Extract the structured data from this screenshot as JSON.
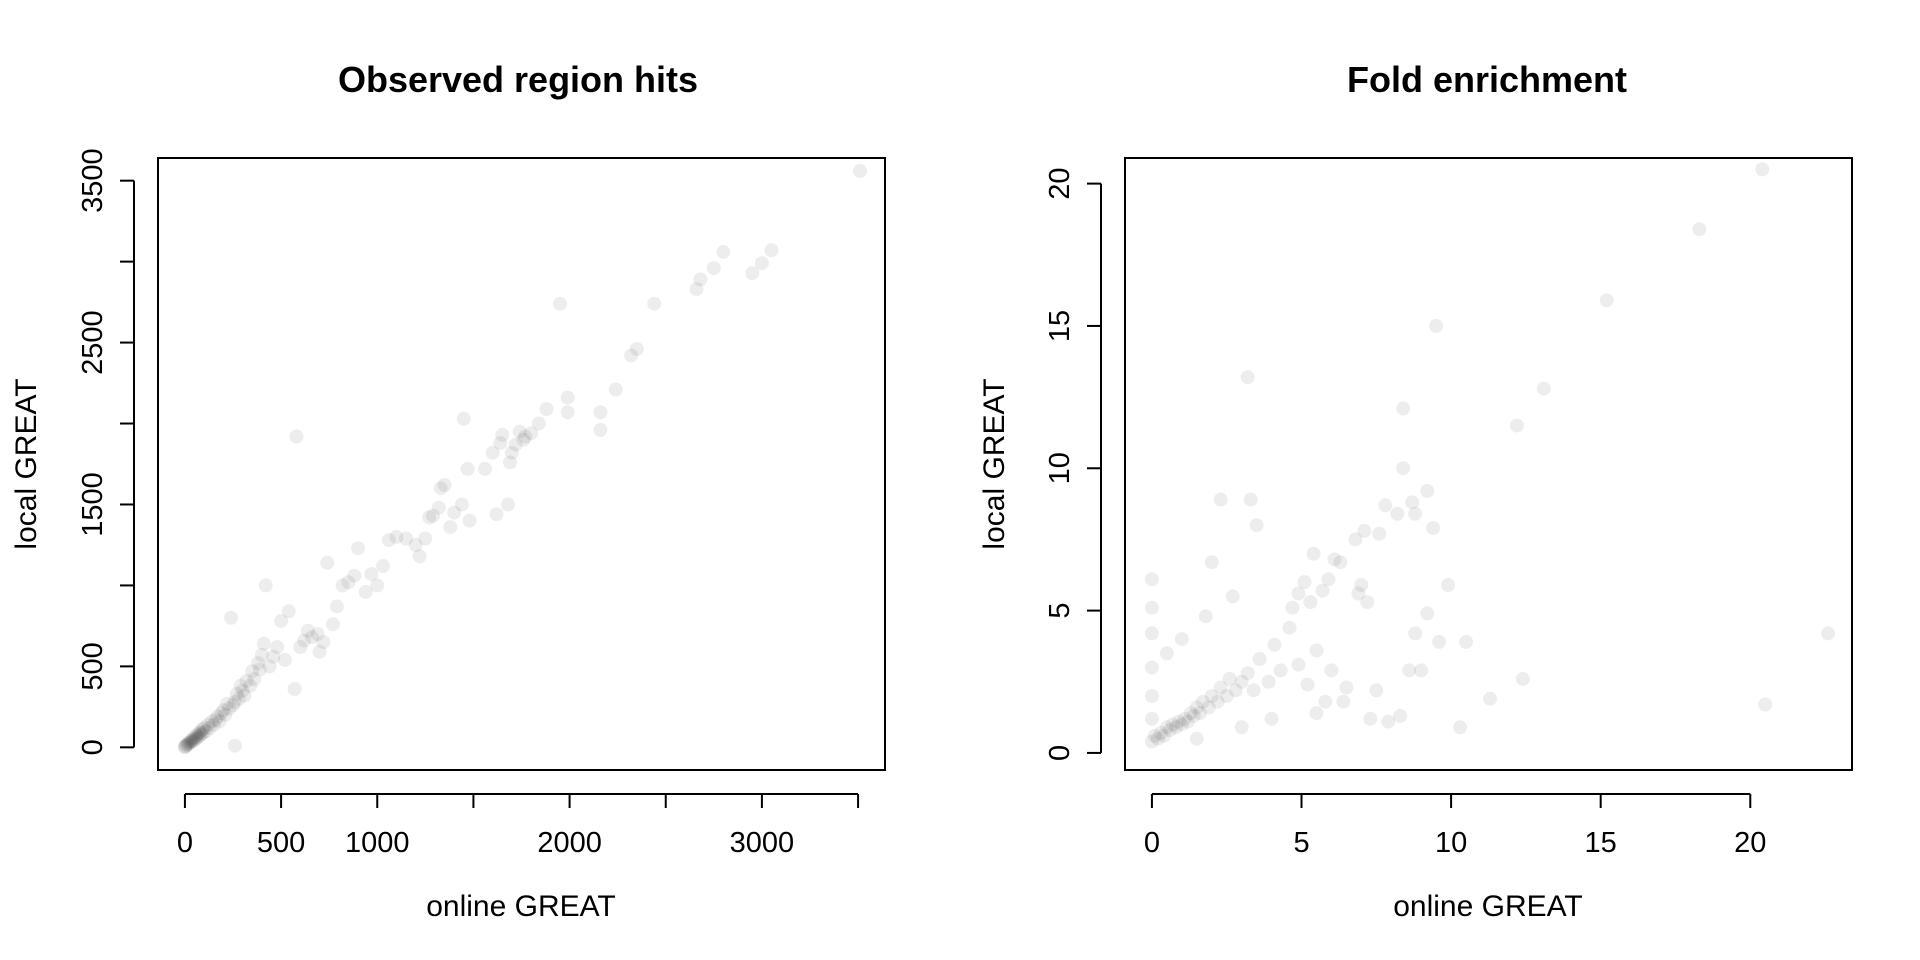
{
  "colors": {
    "point": "#000000",
    "background": "#ffffff"
  },
  "chart_data": [
    {
      "type": "scatter",
      "title": "Observed region hits",
      "xlabel": "online GREAT",
      "ylabel": "local GREAT",
      "xlim": [
        -140,
        3640
      ],
      "ylim": [
        -140,
        3640
      ],
      "x_ticks": [
        0,
        500,
        1000,
        1500,
        2000,
        2500,
        3000,
        3500
      ],
      "x_tick_labels": [
        "0",
        "500",
        "1000",
        "",
        "2000",
        "",
        "3000",
        ""
      ],
      "y_ticks": [
        0,
        500,
        1000,
        1500,
        2000,
        2500,
        3000,
        3500
      ],
      "y_tick_labels": [
        "0",
        "500",
        "",
        "1500",
        "",
        "2500",
        "",
        "3500"
      ],
      "grid": false,
      "point_alpha": 0.07,
      "points": [
        [
          3510,
          3560
        ],
        [
          3050,
          3070
        ],
        [
          3000,
          2990
        ],
        [
          2950,
          2930
        ],
        [
          2800,
          3060
        ],
        [
          2750,
          2960
        ],
        [
          2680,
          2890
        ],
        [
          2660,
          2830
        ],
        [
          2440,
          2740
        ],
        [
          2350,
          2460
        ],
        [
          2320,
          2420
        ],
        [
          2240,
          2210
        ],
        [
          2160,
          2070
        ],
        [
          2160,
          1960
        ],
        [
          1990,
          2160
        ],
        [
          1990,
          2070
        ],
        [
          1950,
          2740
        ],
        [
          1880,
          2090
        ],
        [
          1840,
          2000
        ],
        [
          1800,
          1940
        ],
        [
          1770,
          1920
        ],
        [
          1760,
          1900
        ],
        [
          1740,
          1950
        ],
        [
          1720,
          1870
        ],
        [
          1700,
          1820
        ],
        [
          1690,
          1760
        ],
        [
          1680,
          1500
        ],
        [
          1650,
          1930
        ],
        [
          1640,
          1880
        ],
        [
          1620,
          1440
        ],
        [
          1600,
          1820
        ],
        [
          1560,
          1720
        ],
        [
          1480,
          1400
        ],
        [
          1470,
          1720
        ],
        [
          1450,
          2030
        ],
        [
          1440,
          1500
        ],
        [
          1400,
          1450
        ],
        [
          1380,
          1360
        ],
        [
          1350,
          1620
        ],
        [
          1330,
          1600
        ],
        [
          1320,
          1480
        ],
        [
          1290,
          1430
        ],
        [
          1270,
          1420
        ],
        [
          1250,
          1290
        ],
        [
          1220,
          1180
        ],
        [
          1200,
          1250
        ],
        [
          1150,
          1290
        ],
        [
          1100,
          1300
        ],
        [
          1060,
          1280
        ],
        [
          1030,
          1120
        ],
        [
          1000,
          1000
        ],
        [
          970,
          1070
        ],
        [
          940,
          960
        ],
        [
          900,
          1230
        ],
        [
          880,
          1060
        ],
        [
          850,
          1020
        ],
        [
          820,
          1000
        ],
        [
          790,
          870
        ],
        [
          770,
          760
        ],
        [
          740,
          1140
        ],
        [
          720,
          650
        ],
        [
          700,
          590
        ],
        [
          690,
          700
        ],
        [
          660,
          680
        ],
        [
          640,
          720
        ],
        [
          620,
          660
        ],
        [
          600,
          620
        ],
        [
          580,
          1920
        ],
        [
          570,
          360
        ],
        [
          540,
          840
        ],
        [
          520,
          540
        ],
        [
          500,
          780
        ],
        [
          480,
          620
        ],
        [
          460,
          560
        ],
        [
          440,
          500
        ],
        [
          420,
          1000
        ],
        [
          410,
          640
        ],
        [
          400,
          570
        ],
        [
          390,
          480
        ],
        [
          380,
          520
        ],
        [
          360,
          420
        ],
        [
          350,
          470
        ],
        [
          340,
          380
        ],
        [
          320,
          410
        ],
        [
          310,
          320
        ],
        [
          300,
          350
        ],
        [
          290,
          380
        ],
        [
          280,
          300
        ],
        [
          270,
          330
        ],
        [
          260,
          280
        ],
        [
          250,
          260
        ],
        [
          240,
          800
        ],
        [
          230,
          240
        ],
        [
          220,
          270
        ],
        [
          210,
          200
        ],
        [
          200,
          230
        ],
        [
          190,
          210
        ],
        [
          180,
          160
        ],
        [
          170,
          190
        ],
        [
          160,
          170
        ],
        [
          150,
          140
        ],
        [
          140,
          160
        ],
        [
          130,
          120
        ],
        [
          120,
          140
        ],
        [
          110,
          100
        ],
        [
          100,
          120
        ],
        [
          95,
          90
        ],
        [
          90,
          110
        ],
        [
          85,
          80
        ],
        [
          80,
          95
        ],
        [
          75,
          70
        ],
        [
          70,
          85
        ],
        [
          65,
          60
        ],
        [
          60,
          75
        ],
        [
          55,
          50
        ],
        [
          50,
          60
        ],
        [
          45,
          40
        ],
        [
          40,
          50
        ],
        [
          35,
          35
        ],
        [
          30,
          40
        ],
        [
          25,
          25
        ],
        [
          20,
          30
        ],
        [
          15,
          15
        ],
        [
          10,
          20
        ],
        [
          5,
          10
        ],
        [
          0,
          5
        ],
        [
          0,
          0
        ],
        [
          260,
          10
        ]
      ]
    },
    {
      "type": "scatter",
      "title": "Fold enrichment",
      "xlabel": "online GREAT",
      "ylabel": "local GREAT",
      "xlim": [
        -0.9,
        23.4
      ],
      "ylim": [
        -0.6,
        20.9
      ],
      "x_ticks": [
        0,
        5,
        10,
        15,
        20
      ],
      "x_tick_labels": [
        "0",
        "5",
        "10",
        "15",
        "20"
      ],
      "y_ticks": [
        0,
        5,
        10,
        15,
        20
      ],
      "y_tick_labels": [
        "0",
        "5",
        "10",
        "15",
        "20"
      ],
      "grid": false,
      "point_alpha": 0.07,
      "points": [
        [
          20.4,
          20.5
        ],
        [
          18.3,
          18.4
        ],
        [
          15.2,
          15.9
        ],
        [
          13.1,
          12.8
        ],
        [
          12.2,
          11.5
        ],
        [
          9.5,
          15.0
        ],
        [
          3.2,
          13.2
        ],
        [
          8.4,
          12.1
        ],
        [
          8.4,
          10.0
        ],
        [
          9.2,
          9.2
        ],
        [
          8.7,
          8.8
        ],
        [
          8.2,
          8.4
        ],
        [
          8.8,
          8.4
        ],
        [
          9.4,
          7.9
        ],
        [
          7.8,
          8.7
        ],
        [
          7.6,
          7.7
        ],
        [
          7.1,
          7.8
        ],
        [
          6.8,
          7.5
        ],
        [
          6.9,
          5.6
        ],
        [
          7.0,
          5.9
        ],
        [
          7.2,
          5.3
        ],
        [
          6.3,
          6.7
        ],
        [
          6.1,
          6.8
        ],
        [
          5.4,
          7.0
        ],
        [
          5.9,
          6.1
        ],
        [
          5.7,
          5.7
        ],
        [
          5.1,
          6.0
        ],
        [
          5.3,
          5.3
        ],
        [
          4.7,
          5.1
        ],
        [
          4.9,
          5.6
        ],
        [
          3.5,
          8.0
        ],
        [
          3.3,
          8.9
        ],
        [
          2.3,
          8.9
        ],
        [
          10.5,
          3.9
        ],
        [
          9.9,
          5.9
        ],
        [
          9.2,
          4.9
        ],
        [
          9.6,
          3.9
        ],
        [
          9.0,
          2.9
        ],
        [
          8.6,
          2.9
        ],
        [
          8.8,
          4.2
        ],
        [
          7.9,
          1.1
        ],
        [
          8.3,
          1.3
        ],
        [
          7.3,
          1.2
        ],
        [
          10.3,
          0.9
        ],
        [
          11.3,
          1.9
        ],
        [
          12.4,
          2.6
        ],
        [
          20.5,
          1.7
        ],
        [
          22.6,
          4.2
        ],
        [
          6.5,
          2.3
        ],
        [
          6.0,
          2.9
        ],
        [
          5.8,
          1.8
        ],
        [
          5.5,
          3.6
        ],
        [
          5.2,
          2.4
        ],
        [
          4.9,
          3.1
        ],
        [
          4.6,
          4.4
        ],
        [
          4.3,
          2.9
        ],
        [
          4.1,
          3.8
        ],
        [
          3.9,
          2.5
        ],
        [
          3.6,
          3.3
        ],
        [
          3.4,
          2.2
        ],
        [
          3.2,
          2.8
        ],
        [
          3.0,
          2.5
        ],
        [
          2.8,
          2.2
        ],
        [
          2.6,
          2.6
        ],
        [
          2.5,
          2.0
        ],
        [
          2.3,
          2.3
        ],
        [
          2.2,
          1.8
        ],
        [
          2.0,
          2.0
        ],
        [
          1.9,
          1.6
        ],
        [
          1.7,
          1.8
        ],
        [
          1.6,
          1.4
        ],
        [
          1.5,
          1.6
        ],
        [
          1.4,
          1.3
        ],
        [
          1.3,
          1.4
        ],
        [
          1.2,
          1.1
        ],
        [
          1.1,
          1.2
        ],
        [
          1.0,
          1.0
        ],
        [
          0.9,
          1.1
        ],
        [
          0.8,
          0.9
        ],
        [
          0.7,
          1.0
        ],
        [
          0.6,
          0.8
        ],
        [
          0.5,
          0.9
        ],
        [
          0.4,
          0.6
        ],
        [
          0.3,
          0.7
        ],
        [
          0.2,
          0.5
        ],
        [
          0.1,
          0.6
        ],
        [
          0.0,
          0.4
        ],
        [
          0.0,
          1.2
        ],
        [
          0.0,
          2.0
        ],
        [
          0.0,
          3.0
        ],
        [
          0.0,
          4.2
        ],
        [
          0.0,
          5.1
        ],
        [
          0.0,
          6.1
        ],
        [
          0.5,
          3.5
        ],
        [
          1.0,
          4.0
        ],
        [
          1.8,
          4.8
        ],
        [
          2.7,
          5.5
        ],
        [
          2.0,
          6.7
        ],
        [
          3.0,
          0.9
        ],
        [
          4.0,
          1.2
        ],
        [
          5.5,
          1.4
        ],
        [
          6.4,
          1.8
        ],
        [
          7.5,
          2.2
        ],
        [
          1.5,
          0.5
        ]
      ]
    }
  ]
}
